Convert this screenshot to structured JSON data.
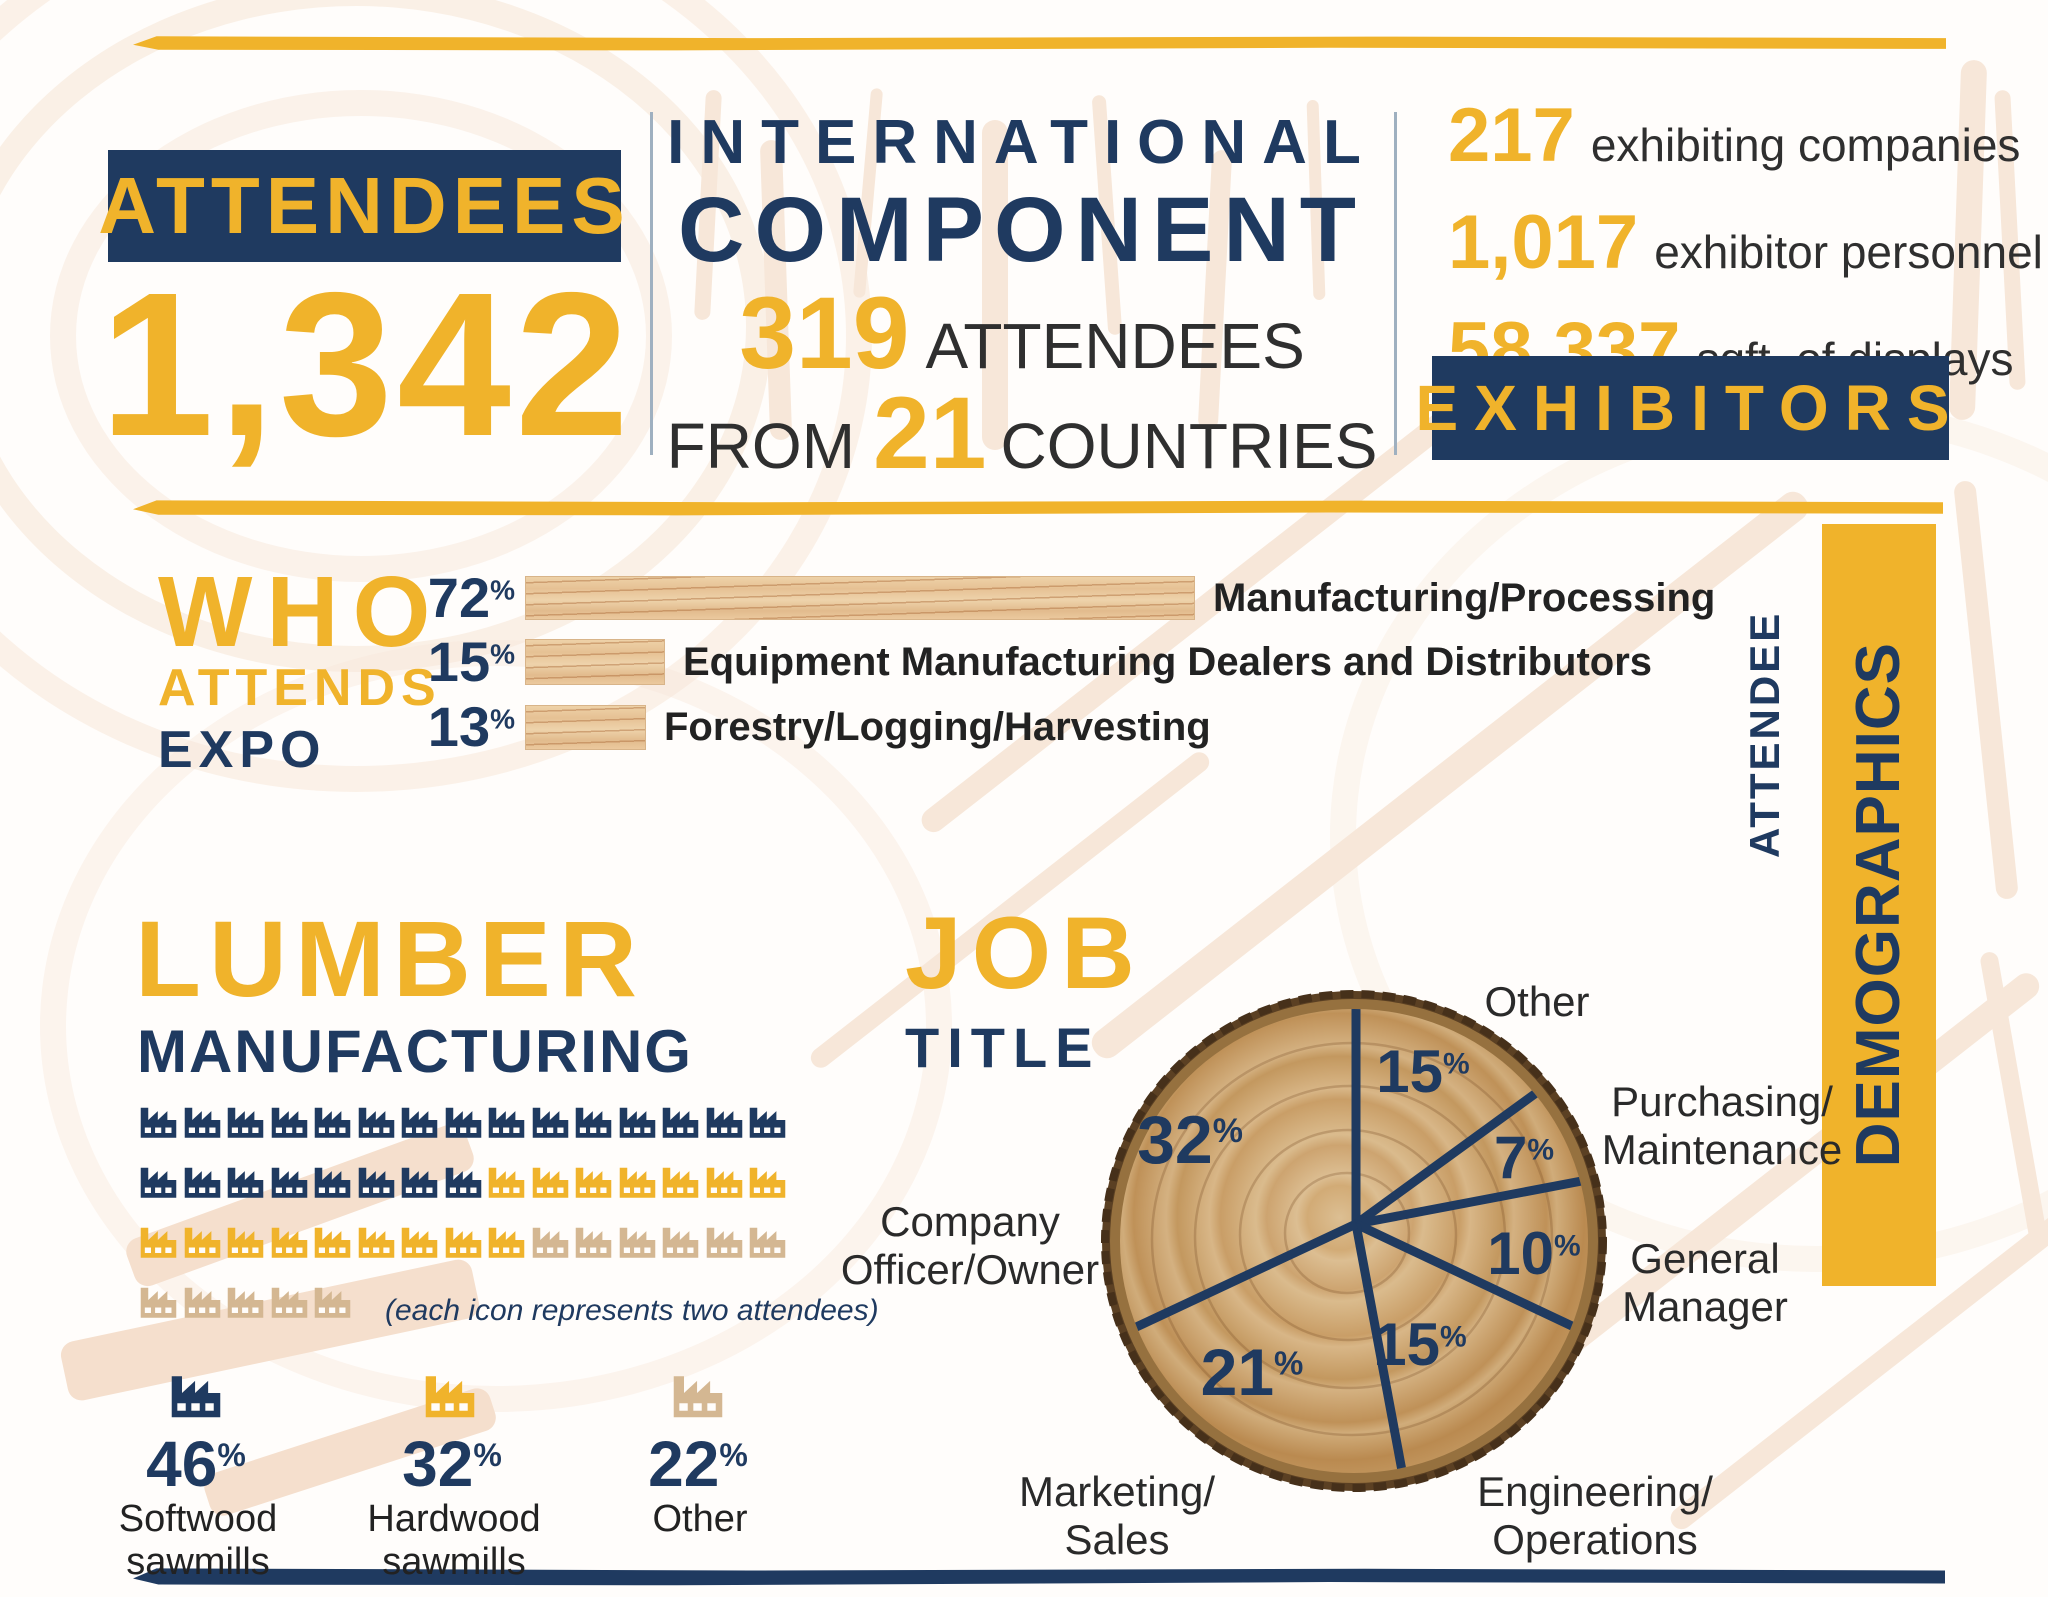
{
  "colors": {
    "navy": "#1f3a60",
    "gold": "#f0b32b",
    "tan": "#d4b792",
    "ink": "#2f2f2f",
    "paper": "#fffdfb",
    "peach": "#f7e7d9",
    "divider": "#9fb0c0"
  },
  "unit_percent": "%",
  "top": {
    "attendees_banner": "ATTENDEES",
    "attendees_value": "1,342",
    "international_line1": "INTERNATIONAL",
    "international_line2": "COMPONENT",
    "intl_value": "319",
    "intl_value_label": "ATTENDEES",
    "from_word": "FROM",
    "countries_value": "21",
    "countries_word": "COUNTRIES",
    "exhibitor_stats": [
      {
        "value": "217",
        "label": "exhibiting companies"
      },
      {
        "value": "1,017",
        "label": "exhibitor personnel"
      },
      {
        "value": "58,337",
        "label": "sqft. of displays"
      }
    ],
    "exhibitors_banner": "EXHIBITORS"
  },
  "who_attends": {
    "title_line1": "WHO",
    "title_line2": "ATTENDS",
    "title_line3": "EXPO",
    "bars": [
      {
        "value": 72,
        "label": "Manufacturing/Processing"
      },
      {
        "value": 15,
        "label": "Equipment Manufacturing Dealers and Distributors"
      },
      {
        "value": 13,
        "label": "Forestry/Logging/Harvesting"
      }
    ]
  },
  "lumber": {
    "title_line1": "LUMBER",
    "title_line2": "MANUFACTURING",
    "note": "(each icon represents two attendees)",
    "grid_rows": [
      [
        {
          "color": "navy",
          "count": 15
        }
      ],
      [
        {
          "color": "navy",
          "count": 8
        },
        {
          "color": "gold",
          "count": 7
        }
      ],
      [
        {
          "color": "gold",
          "count": 9
        },
        {
          "color": "tan",
          "count": 6
        }
      ],
      [
        {
          "color": "tan",
          "count": 5
        }
      ]
    ],
    "legend": [
      {
        "value": 46,
        "label_line1": "Softwood",
        "label_line2": "sawmills",
        "color": "navy"
      },
      {
        "value": 32,
        "label_line1": "Hardwood",
        "label_line2": "sawmills",
        "color": "gold"
      },
      {
        "value": 22,
        "label_line1": "Other",
        "label_line2": "",
        "color": "tan"
      }
    ]
  },
  "job": {
    "title_line1": "JOB",
    "title_line2": "TITLE",
    "slices": [
      {
        "value": 15,
        "label_line1": "Other",
        "label_line2": ""
      },
      {
        "value": 7,
        "label_line1": "Purchasing/",
        "label_line2": "Maintenance"
      },
      {
        "value": 10,
        "label_line1": "General",
        "label_line2": "Manager"
      },
      {
        "value": 15,
        "label_line1": "Engineering/",
        "label_line2": "Operations"
      },
      {
        "value": 21,
        "label_line1": "Marketing/",
        "label_line2": "Sales"
      },
      {
        "value": 32,
        "label_line1": "Company",
        "label_line2": "Officer/Owner"
      }
    ]
  },
  "sidebar": {
    "label_top": "ATTENDEE",
    "banner": "DEMOGRAPHICS"
  },
  "chart_data": [
    {
      "type": "bar",
      "title": "WHO ATTENDS EXPO",
      "categories": [
        "Manufacturing/Processing",
        "Equipment Manufacturing Dealers and Distributors",
        "Forestry/Logging/Harvesting"
      ],
      "values": [
        72,
        15,
        13
      ],
      "unit": "percent",
      "orientation": "horizontal",
      "bar_style": "wood plank texture",
      "value_label_position": "left of bar",
      "category_label_position": "right of bar"
    },
    {
      "type": "pictogram",
      "title": "LUMBER MANUFACTURING",
      "note": "(each icon represents two attendees)",
      "icon": "factory",
      "attendees_per_icon": 2,
      "total_icons": 50,
      "categories": [
        "Softwood sawmills",
        "Hardwood sawmills",
        "Other"
      ],
      "values": [
        46,
        32,
        22
      ],
      "unit": "percent",
      "icon_counts": [
        23,
        16,
        11
      ],
      "icon_colors": [
        "#1f3a60",
        "#f0b32b",
        "#d4b792"
      ],
      "rows_of_icons": 4,
      "icons_per_full_row": 15
    },
    {
      "type": "pie",
      "title": "JOB TITLE",
      "categories": [
        "Other",
        "Purchasing/Maintenance",
        "General Manager",
        "Engineering/Operations",
        "Marketing/Sales",
        "Company Officer/Owner"
      ],
      "values": [
        15,
        7,
        10,
        15,
        21,
        32
      ],
      "unit": "percent",
      "start_angle_deg": 0,
      "direction": "clockwise",
      "style": "navy divider lines drawn over a tree-log cross-section; values inside slices, category labels outside"
    }
  ]
}
